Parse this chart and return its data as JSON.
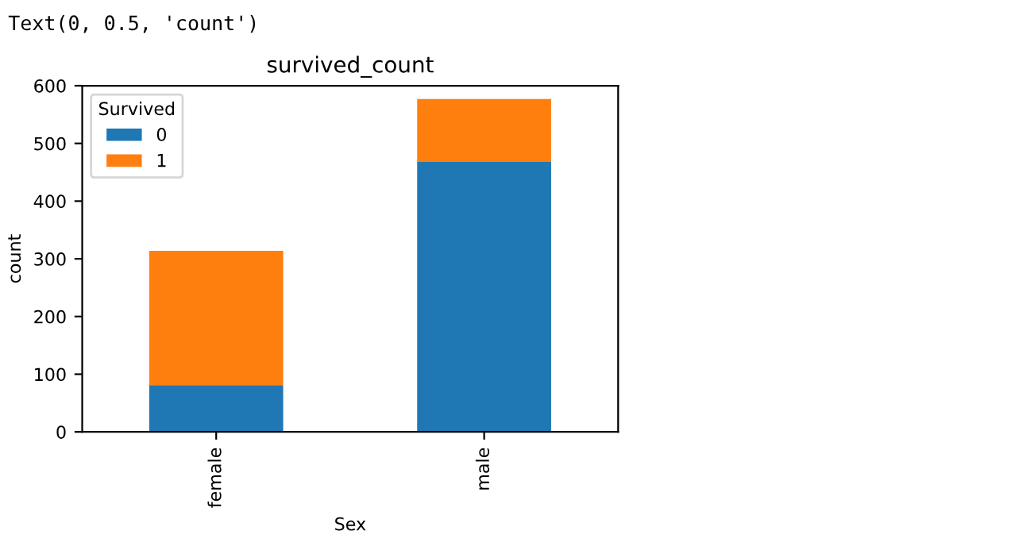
{
  "chart_data": {
    "type": "bar",
    "title": "survived_count",
    "xlabel": "Sex",
    "ylabel": "count",
    "legend_title": "Survived",
    "categories": [
      "female",
      "male"
    ],
    "series": [
      {
        "name": "0",
        "color": "#1f77b4",
        "values": [
          81,
          468
        ]
      },
      {
        "name": "1",
        "color": "#ff7f0e",
        "values": [
          233,
          109
        ]
      }
    ],
    "stacked": true,
    "ylim": [
      0,
      600
    ],
    "yticks": [
      0,
      100,
      200,
      300,
      400,
      500,
      600
    ],
    "legend": "top left",
    "grid": false,
    "annotations": [
      "Text(0, 0.5, 'count')"
    ]
  }
}
